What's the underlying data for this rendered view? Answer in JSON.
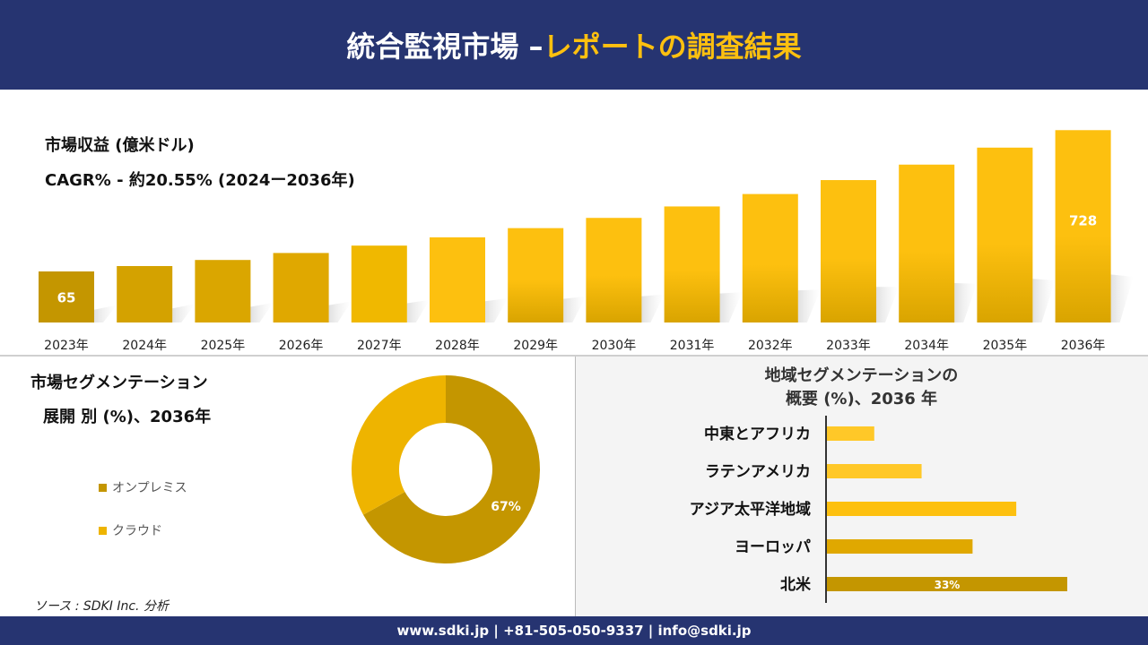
{
  "header": {
    "title_main": "統合監視市場 –",
    "title_accent": "レポートの調査結果"
  },
  "revenue": {
    "title": "市場収益 (億米ドル)",
    "cagr": "CAGR% - 約20.55% (2024ー2036年)"
  },
  "segment": {
    "title_line1": "市場セグメンテーション",
    "title_line2": "展開 別 (%)、2036年"
  },
  "region": {
    "title_line1": "地域セグメンテーションの",
    "title_line2": "概要 (%)、2036 年"
  },
  "source": "ソース : SDKI Inc. 分析",
  "footer": "www.sdki.jp | +81-505-050-9337 | info@sdki.jp",
  "colors": {
    "navy": "#263471",
    "accent": "#fdc00f",
    "dark_gold": "#c49600",
    "gold": "#e0a800",
    "bright": "#fdc00f"
  },
  "chart_data": [
    {
      "type": "bar",
      "categories": [
        "2023年",
        "2024年",
        "2025年",
        "2026年",
        "2027年",
        "2028年",
        "2029年",
        "2030年",
        "2031年",
        "2032年",
        "2033年",
        "2034年",
        "2035年",
        "2036年"
      ],
      "values": [
        65,
        78,
        94,
        114,
        137,
        165,
        199,
        240,
        290,
        349,
        421,
        508,
        612,
        728
      ],
      "data_labels": {
        "0": "65",
        "13": "728"
      },
      "ylabel": "",
      "grid": false
    },
    {
      "type": "pie",
      "subtype": "donut",
      "categories": [
        "オンプレミス",
        "クラウド"
      ],
      "values": [
        67,
        33
      ],
      "data_labels": {
        "0": "67%"
      },
      "colors": [
        "#c49600",
        "#eeb400"
      ],
      "legend": "left"
    },
    {
      "type": "bar",
      "orientation": "horizontal",
      "categories": [
        "中東とアフリカ",
        "ラテンアメリカ",
        "アジア太平洋地域",
        "ヨーロッパ",
        "北米"
      ],
      "values": [
        6.5,
        13,
        26,
        20,
        33
      ],
      "data_labels": {
        "4": "33%"
      },
      "colors": [
        "#ffc828",
        "#ffc828",
        "#fdc00f",
        "#e0a800",
        "#c49600"
      ]
    }
  ]
}
